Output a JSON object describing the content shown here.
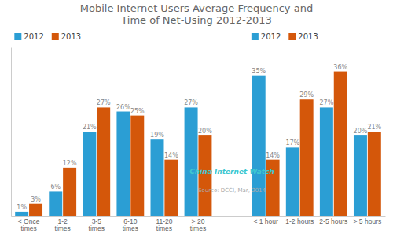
{
  "chart_data": {
    "type": "bar",
    "title": "Mobile Internet Users Average Frequency and\nTime of Net-Using 2012-2013",
    "categories": [
      "< Once\ntimes",
      "1-2\ntimes",
      "3-5\ntimes",
      "6-10\ntimes",
      "11-20\ntimes",
      "> 20\ntimes",
      "< 1 hour",
      "1-2 hours",
      "2-5 hours",
      "> 5 hours"
    ],
    "series": [
      {
        "name": "2012",
        "color": "#2B9ED4",
        "values": [
          1,
          6,
          21,
          26,
          19,
          27,
          35,
          17,
          27,
          20
        ],
        "value_labels": [
          "1%",
          "6%",
          "21%",
          "26%",
          "19%",
          "27%",
          "35%",
          "17%",
          "27%",
          "20%"
        ]
      },
      {
        "name": "2013",
        "color": "#D4570A",
        "values": [
          3,
          12,
          27,
          25,
          14,
          20,
          14,
          29,
          36,
          21
        ],
        "value_labels": [
          "3%",
          "12%",
          "27%",
          "25%",
          "14%",
          "20%",
          "14%",
          "29%",
          "36%",
          "21%"
        ]
      }
    ],
    "ylim": [
      0,
      42
    ],
    "tick_labels": "x",
    "data_labels": true,
    "legend": "top",
    "grid": false,
    "annotations": [
      "China Internet Watch",
      "Source: DCCI, Mar, 2014"
    ]
  }
}
